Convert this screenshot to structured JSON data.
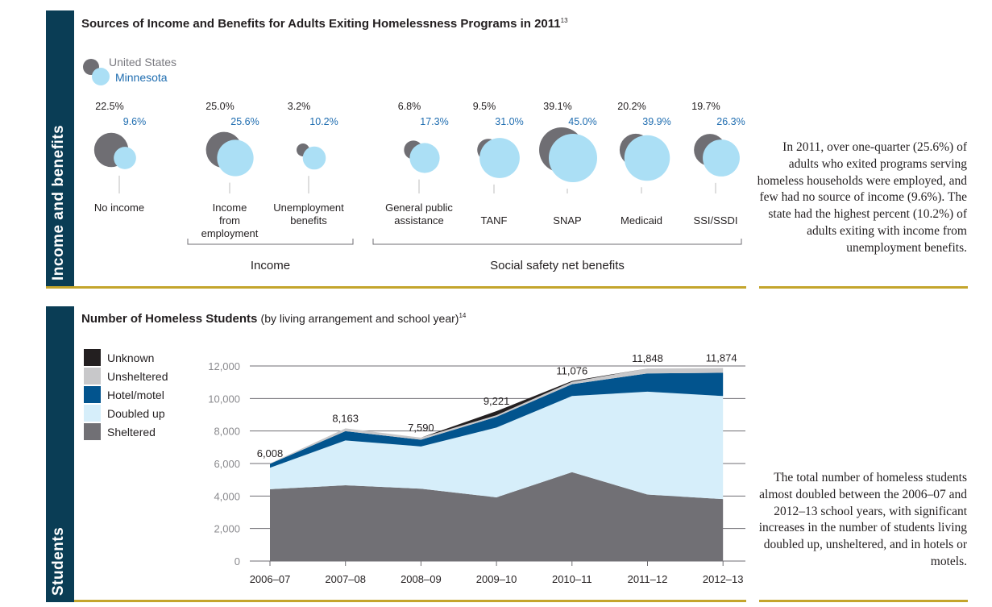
{
  "income_section": {
    "side_label": "Income and benefits",
    "title": "Sources of Income and Benefits for Adults Exiting Homelessness Programs in 2011",
    "footnote": "13",
    "note": "In 2011, over one-quarter (25.6%) of adults who exited programs serving homeless households were employed, and few had no source of income (9.6%). The state had the highest percent (10.2%) of adults exiting with income from unemployment benefits."
  },
  "students_section": {
    "side_label": "Students",
    "title": "Number of Homeless Students",
    "subtitle": "(by living arrangement and school year)",
    "footnote": "14",
    "note": "The total number of homeless students almost doubled between the 2006–07 and 2012–13 school years, with significant increases in the number of students living doubled up, unsheltered, and in hotels or motels."
  },
  "colors": {
    "us": "#6f6e73",
    "mn": "#abdff5",
    "mn_text": "#1f6db0",
    "sidebar": "#0a3d55",
    "gold": "#c4a52c"
  },
  "chart_data": [
    {
      "type": "bubble",
      "title": "Sources of Income and Benefits for Adults Exiting Homelessness Programs in 2011",
      "legend": [
        "United States",
        "Minnesota"
      ],
      "legend_position": "top-left",
      "unit": "percent",
      "categories": [
        "No income",
        "Income from employment",
        "Unemployment benefits",
        "General public assistance",
        "TANF",
        "SNAP",
        "Medicaid",
        "SSI/SSDI"
      ],
      "category_lines": [
        [
          "No income"
        ],
        [
          "Income",
          "from",
          "employment"
        ],
        [
          "Unemployment",
          "benefits"
        ],
        [
          "General public",
          "assistance"
        ],
        [
          "TANF"
        ],
        [
          "SNAP"
        ],
        [
          "Medicaid"
        ],
        [
          "SSI/SSDI"
        ]
      ],
      "series": [
        {
          "name": "United States",
          "values": [
            22.5,
            25.0,
            3.2,
            6.8,
            9.5,
            39.1,
            20.2,
            19.7
          ],
          "labels": [
            "22.5%",
            "25.0%",
            "3.2%",
            "6.8%",
            "9.5%",
            "39.1%",
            "20.2%",
            "19.7%"
          ]
        },
        {
          "name": "Minnesota",
          "values": [
            9.6,
            25.6,
            10.2,
            17.3,
            31.0,
            45.0,
            39.9,
            26.3
          ],
          "labels": [
            "9.6%",
            "25.6%",
            "10.2%",
            "17.3%",
            "31.0%",
            "45.0%",
            "39.9%",
            "26.3%"
          ]
        }
      ],
      "groups": [
        {
          "label": "Income",
          "from": 1,
          "to": 2
        },
        {
          "label": "Social safety net benefits",
          "from": 3,
          "to": 7
        }
      ]
    },
    {
      "type": "area",
      "stacked": true,
      "title": "Number of Homeless Students (by living arrangement and school year)",
      "xlabel": "",
      "ylabel": "",
      "categories": [
        "2006–07",
        "2007–08",
        "2008–09",
        "2009–10",
        "2010–11",
        "2011–12",
        "2012–13"
      ],
      "ylim": [
        0,
        12000
      ],
      "yticks": [
        0,
        2000,
        4000,
        6000,
        8000,
        10000,
        12000
      ],
      "ytick_labels": [
        "0",
        "2,000",
        "4,000",
        "6,000",
        "8,000",
        "10,000",
        "12,000"
      ],
      "grid": true,
      "legend_position": "left",
      "series": [
        {
          "name": "Sheltered",
          "color": "#717075",
          "values": [
            4420,
            4660,
            4450,
            3920,
            5470,
            4090,
            3810
          ]
        },
        {
          "name": "Doubled up",
          "color": "#d6eefa",
          "values": [
            1320,
            2760,
            2600,
            4290,
            4680,
            6330,
            6340
          ]
        },
        {
          "name": "Hotel/motel",
          "color": "#02548e",
          "values": [
            240,
            570,
            410,
            660,
            730,
            1120,
            1430
          ]
        },
        {
          "name": "Unsheltered",
          "color": "#c8c8ca",
          "values": [
            28,
            173,
            130,
            100,
            146,
            308,
            294
          ]
        },
        {
          "name": "Unknown",
          "color": "#231f20",
          "values": [
            0,
            0,
            0,
            251,
            50,
            0,
            0
          ]
        }
      ],
      "totals": [
        6008,
        8163,
        7590,
        9221,
        11076,
        11848,
        11874
      ],
      "total_labels": [
        "6,008",
        "8,163",
        "7,590",
        "9,221",
        "11,076",
        "11,848",
        "11,874"
      ]
    }
  ]
}
